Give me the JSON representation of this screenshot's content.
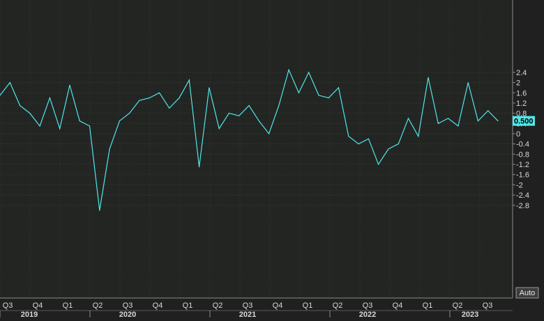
{
  "chart_data": {
    "type": "line",
    "title": "",
    "xlabel": "",
    "ylabel": "",
    "ylim": [
      -3.2,
      2.6
    ],
    "grid": true,
    "y_ticks": [
      2.4,
      2,
      1.6,
      1.2,
      0.8,
      0.4,
      0,
      -0.4,
      -0.8,
      -1.2,
      -1.6,
      -2,
      -2.4,
      -2.8
    ],
    "y_tick_labels": [
      "2.4",
      "2",
      "1.6",
      "1.2",
      "0.8",
      "0.4",
      "0",
      "-0.4",
      "-0.8",
      "-1.2",
      "-1.6",
      "-2",
      "-2.4",
      "-2.8"
    ],
    "x_quarter_labels": [
      "Q3",
      "Q4",
      "Q1",
      "Q2",
      "Q3",
      "Q4",
      "Q1",
      "Q2",
      "Q3",
      "Q4",
      "Q1",
      "Q2",
      "Q3",
      "Q4",
      "Q1",
      "Q2",
      "Q3"
    ],
    "x_year_labels": [
      "2019",
      "2020",
      "2021",
      "2022",
      "2023"
    ],
    "last_value_label": "0.500",
    "auto_label": "Auto",
    "line_color": "#4fe8e8",
    "series": [
      {
        "values": [
          1.5,
          2.0,
          1.1,
          0.8,
          0.3,
          1.4,
          0.2,
          1.9,
          0.5,
          0.3,
          -3.0,
          -0.6,
          0.5,
          0.8,
          1.3,
          1.4,
          1.6,
          1.0,
          1.4,
          2.1,
          -1.3,
          1.8,
          0.2,
          0.8,
          0.7,
          1.1,
          0.5,
          0.0,
          1.1,
          2.5,
          1.6,
          2.4,
          1.5,
          1.4,
          1.8,
          -0.1,
          -0.4,
          -0.2,
          -1.2,
          -0.6,
          -0.4,
          0.6,
          -0.1,
          2.2,
          0.4,
          0.6,
          0.3,
          2.0,
          0.5,
          0.9,
          0.5
        ]
      }
    ]
  }
}
